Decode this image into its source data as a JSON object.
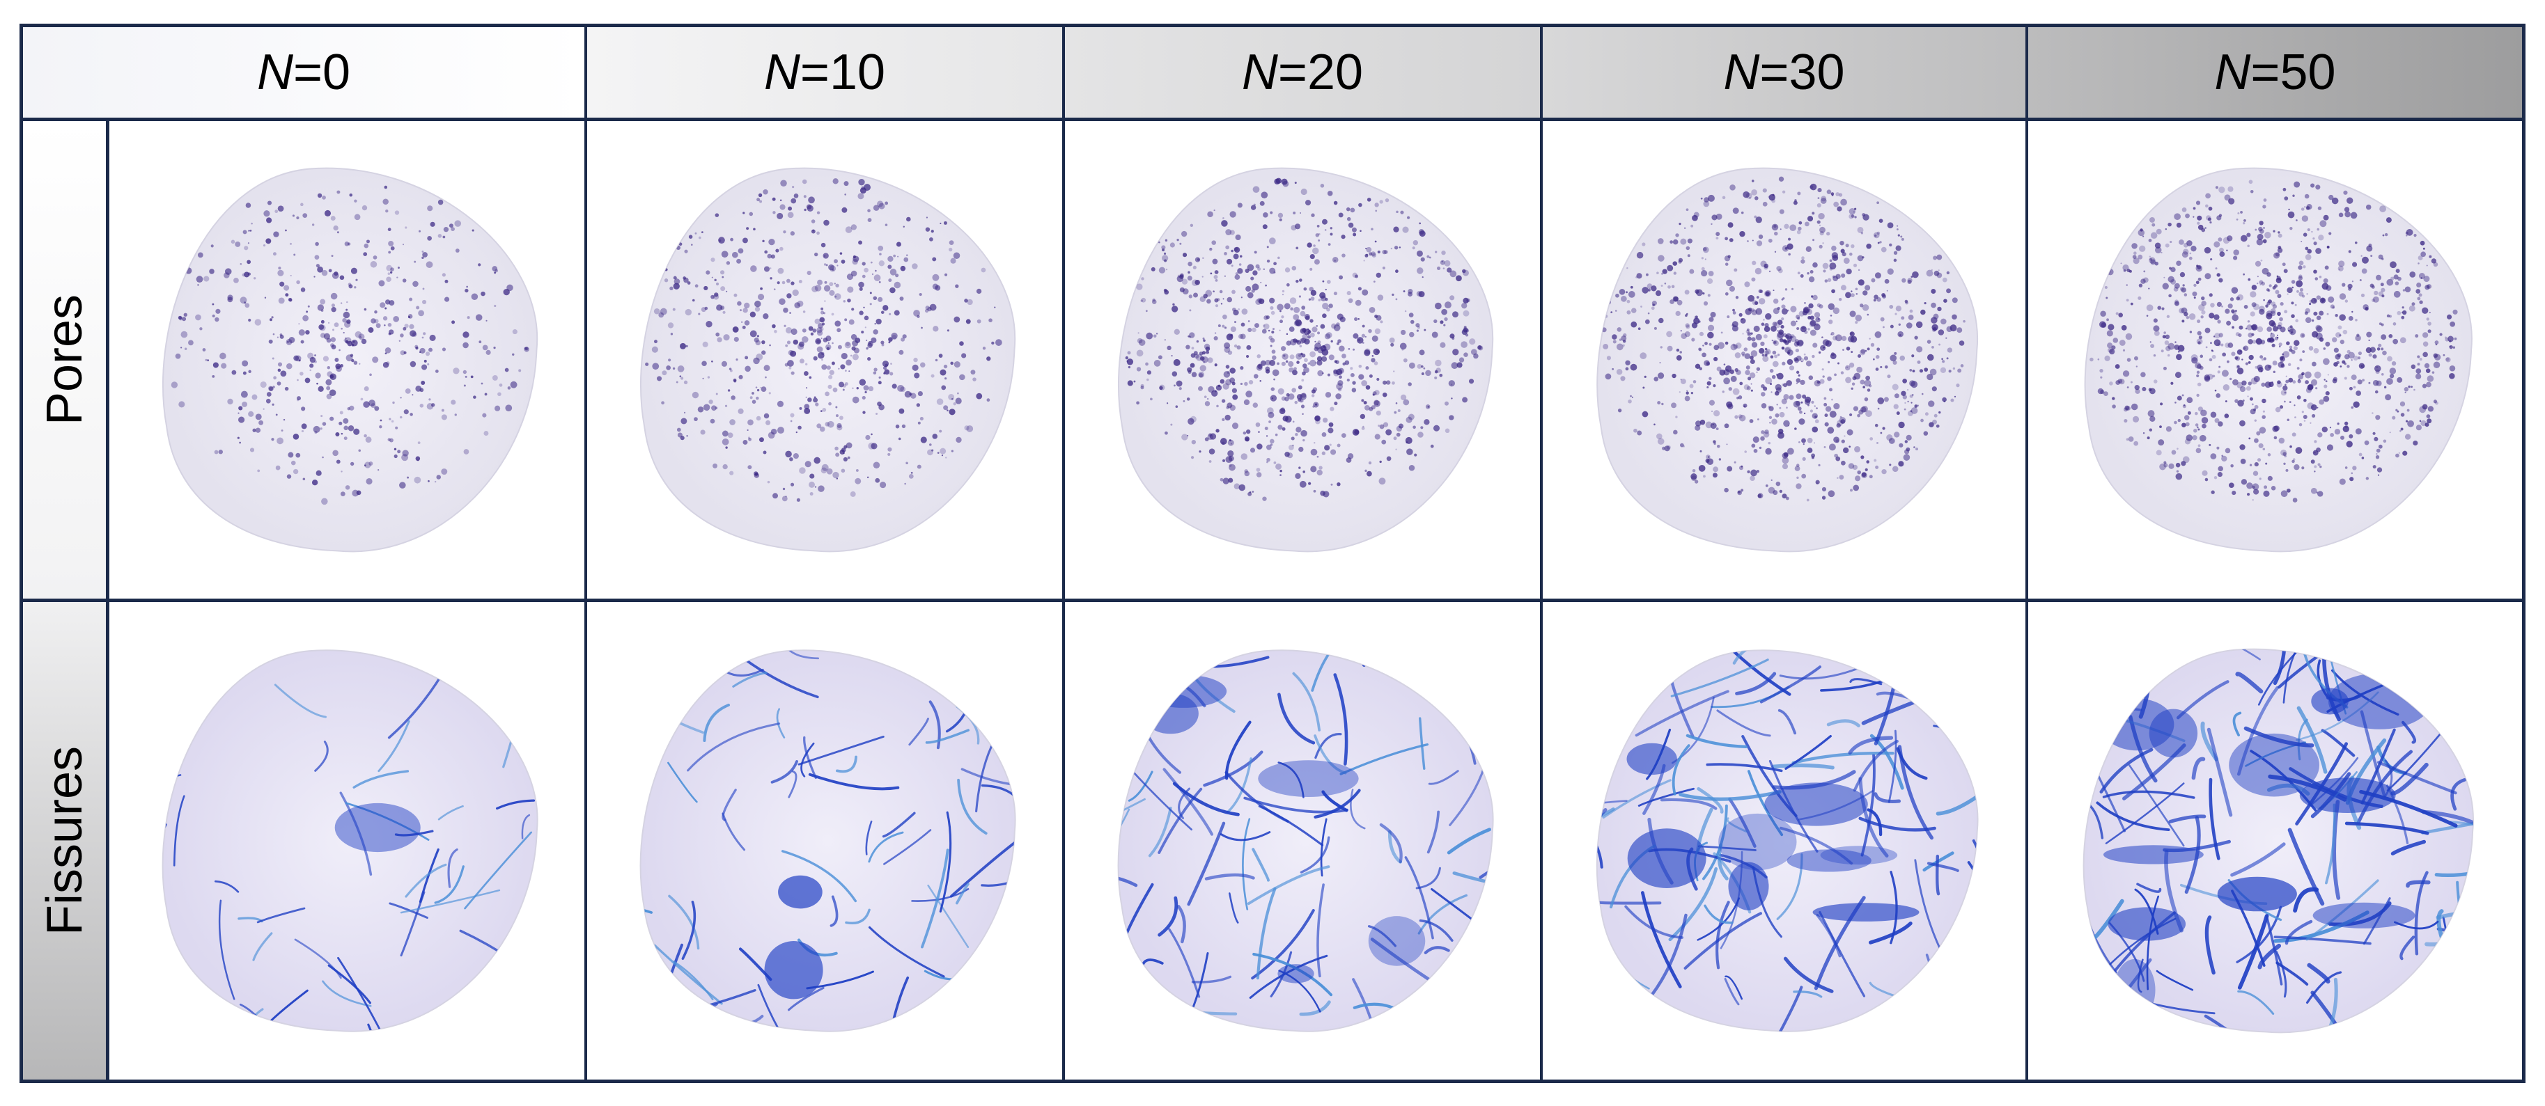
{
  "columns": [
    {
      "var": "N",
      "op": " = ",
      "value": "0"
    },
    {
      "var": "N",
      "op": " = ",
      "value": "10"
    },
    {
      "var": "N",
      "op": " = ",
      "value": "20"
    },
    {
      "var": "N",
      "op": " = ",
      "value": "30"
    },
    {
      "var": "N",
      "op": " = ",
      "value": "50"
    }
  ],
  "rows": [
    {
      "label": "Pores",
      "color": "#3d2a86"
    },
    {
      "label": "Fissures",
      "color": "#1f3fc4"
    }
  ],
  "density": {
    "pores": [
      0.35,
      0.45,
      0.6,
      0.7,
      0.72
    ],
    "fissures": [
      0.25,
      0.4,
      0.6,
      0.75,
      0.9
    ]
  }
}
